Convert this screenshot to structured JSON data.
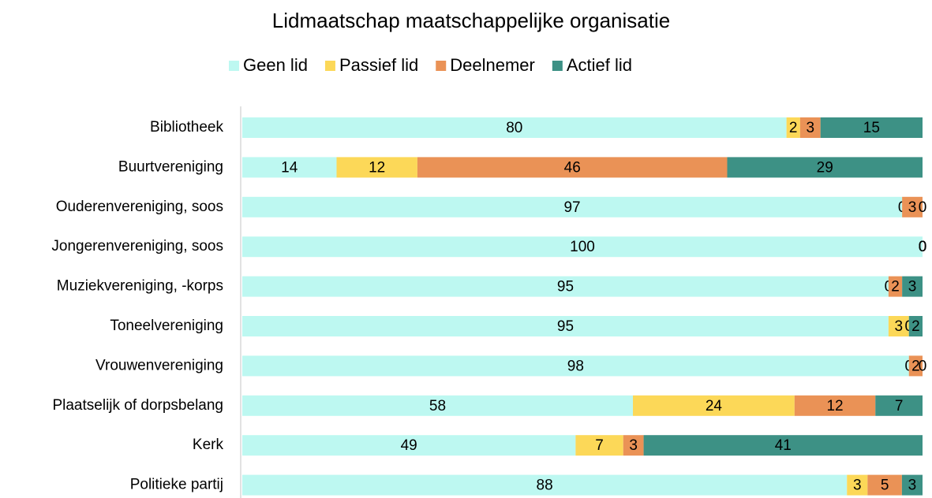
{
  "chart_data": {
    "type": "stacked_bar_100",
    "title": "Lidmaatschap maatschappelijke organisatie",
    "categories": [
      "Bibliotheek",
      "Buurtvereniging",
      "Ouderenvereniging, soos",
      "Jongerenvereniging, soos",
      "Muziekvereniging, -korps",
      "Toneelvereniging",
      "Vrouwenvereniging",
      "Plaatselijk of dorpsbelang",
      "Kerk",
      "Politieke partij"
    ],
    "series": [
      {
        "name": "Geen lid",
        "color": "#bdf8f1",
        "values": [
          80,
          14,
          97,
          100,
          95,
          95,
          98,
          58,
          49,
          88
        ]
      },
      {
        "name": "Passief lid",
        "color": "#fcd858",
        "values": [
          2,
          12,
          0,
          0,
          0,
          3,
          0,
          24,
          7,
          3
        ]
      },
      {
        "name": "Deelnemer",
        "color": "#ea9256",
        "values": [
          3,
          46,
          3,
          0,
          2,
          0,
          2,
          12,
          3,
          5
        ]
      },
      {
        "name": "Actief lid",
        "color": "#3d9185",
        "values": [
          15,
          29,
          0,
          0,
          3,
          2,
          0,
          7,
          41,
          3
        ]
      }
    ],
    "legend": "top"
  }
}
